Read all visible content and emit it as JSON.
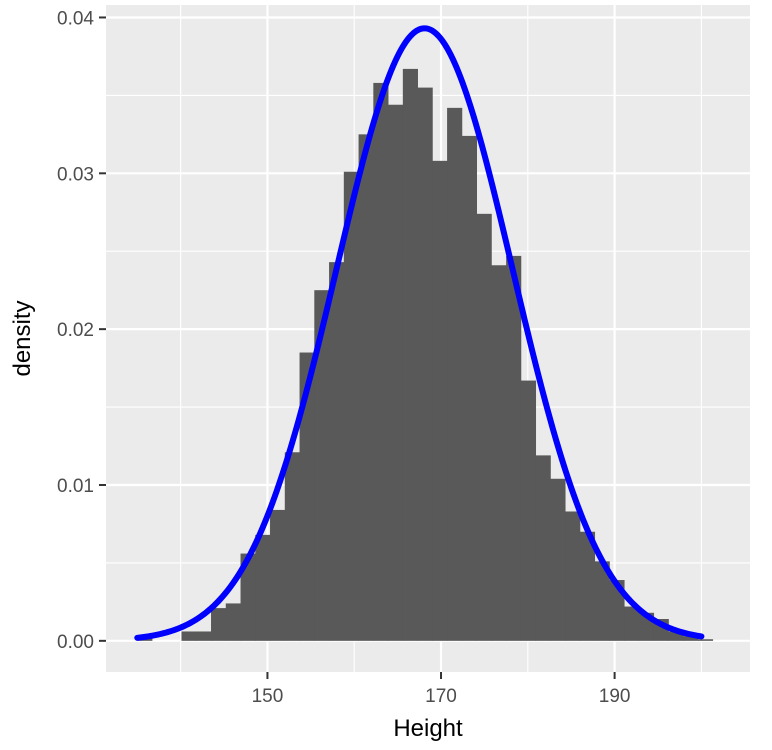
{
  "chart_data": {
    "type": "histogram",
    "xlabel": "Height",
    "ylabel": "density",
    "xlim": [
      131.4,
      205.6
    ],
    "ylim": [
      -0.002,
      0.0408
    ],
    "x_ticks": [
      150,
      170,
      190
    ],
    "x_tick_labels": [
      "150",
      "170",
      "190"
    ],
    "y_ticks": [
      0.0,
      0.01,
      0.02,
      0.03,
      0.04
    ],
    "y_tick_labels": [
      "0.00",
      "0.01",
      "0.02",
      "0.03",
      "0.04"
    ],
    "grid": true,
    "legend": "none",
    "colors": {
      "panel_background": "#ebebeb",
      "grid_line": "#ffffff",
      "bar_fill": "#595959",
      "curve": "#0000ff"
    },
    "histogram": {
      "bin_edges": [
        135.0,
        136.7,
        138.4,
        140.1,
        141.8,
        143.5,
        145.2,
        146.9,
        148.6,
        150.3,
        152.0,
        153.7,
        155.4,
        157.1,
        158.8,
        160.5,
        162.2,
        163.9,
        165.6,
        167.3,
        169.0,
        170.7,
        172.4,
        174.1,
        175.8,
        177.5,
        179.2,
        180.9,
        182.6,
        184.3,
        186.0,
        187.7,
        189.4,
        191.1,
        192.8,
        194.5,
        196.2,
        197.9,
        199.6,
        201.3
      ],
      "density": [
        0.0002,
        0.0,
        0.0,
        0.0006,
        0.0006,
        0.0021,
        0.0024,
        0.0056,
        0.0068,
        0.0084,
        0.0121,
        0.0185,
        0.0225,
        0.0243,
        0.0301,
        0.0325,
        0.0358,
        0.0344,
        0.0367,
        0.0355,
        0.0308,
        0.0342,
        0.0324,
        0.0274,
        0.0241,
        0.0247,
        0.0167,
        0.0119,
        0.0104,
        0.0083,
        0.007,
        0.0051,
        0.0039,
        0.0022,
        0.0018,
        0.0014,
        0.0006,
        0.0003,
        0.0001
      ]
    },
    "series": [
      {
        "type": "line",
        "mean": 168.1,
        "sd": 10.15,
        "x_range": [
          135,
          200
        ]
      }
    ]
  }
}
